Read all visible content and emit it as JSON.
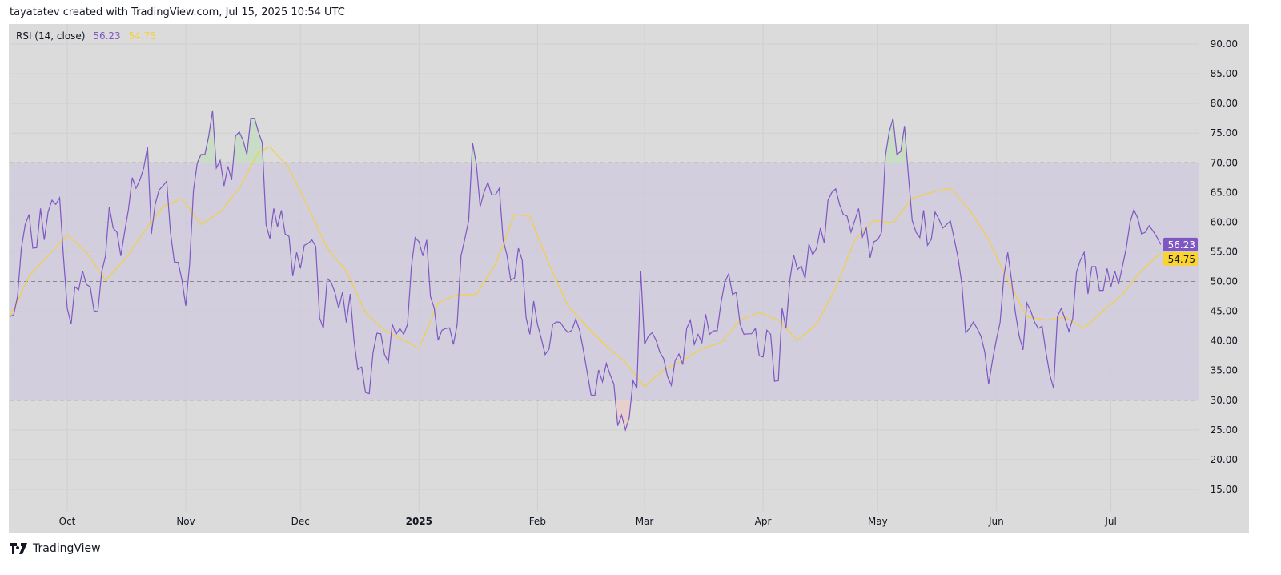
{
  "header": {
    "attribution": "tayatatev created with TradingView.com, Jul 15, 2025 10:54 UTC"
  },
  "legend": {
    "indicator": "RSI (14, close)",
    "rsi_value": "56.23",
    "signal_value": "54.75"
  },
  "footer": {
    "brand": "TradingView",
    "logo_icon": "tradingview-logo-icon"
  },
  "colors": {
    "rsi": "#7e57c2",
    "signal": "#f5d03c",
    "band": "#cfc9dd",
    "background": "#dbdbdb",
    "overbought_fill": "#c9dcc6",
    "oversold_fill": "#e6cfcc"
  },
  "chart_data": {
    "type": "line",
    "title": "RSI (14, close)",
    "xlabel": "",
    "ylabel": "",
    "x_range": [
      "2024-09-16",
      "2025-07-24"
    ],
    "ylim": [
      10,
      92.5
    ],
    "y_ticks": [
      "15.00",
      "20.00",
      "25.00",
      "30.00",
      "35.00",
      "40.00",
      "45.00",
      "50.00",
      "55.00",
      "60.00",
      "65.00",
      "70.00",
      "75.00",
      "80.00",
      "85.00",
      "90.00"
    ],
    "x_ticks": [
      {
        "label": "Oct",
        "date": "2024-10-01"
      },
      {
        "label": "Nov",
        "date": "2024-11-01"
      },
      {
        "label": "Dec",
        "date": "2024-12-01"
      },
      {
        "label": "2025",
        "date": "2025-01-01",
        "bold": true
      },
      {
        "label": "Feb",
        "date": "2025-02-01"
      },
      {
        "label": "Mar",
        "date": "2025-03-01"
      },
      {
        "label": "Apr",
        "date": "2025-04-01"
      },
      {
        "label": "May",
        "date": "2025-05-01"
      },
      {
        "label": "Jun",
        "date": "2025-06-01"
      },
      {
        "label": "Jul",
        "date": "2025-07-01"
      }
    ],
    "bands": {
      "upper": 70,
      "middle": 50,
      "lower": 30
    },
    "grid": true,
    "series": [
      {
        "name": "RSI",
        "last_label": "56.23",
        "months": [
          {
            "month": "2024-09",
            "first_day": 16,
            "values": [
              44.1,
              44.4,
              47.5,
              55.6,
              59.6,
              61.3,
              55.6,
              55.7,
              62.3,
              57,
              61.7,
              63.7,
              63,
              64.1,
              54.3
            ]
          },
          {
            "month": "2024-10",
            "first_day": 1,
            "values": [
              45.5,
              42.8,
              49.1,
              48.6,
              51.8,
              49.5,
              49.1,
              45.1,
              44.9,
              51.6,
              54.3,
              62.6,
              59,
              58.3,
              54.3,
              58.3,
              62.1,
              67.5,
              65.7,
              67.1,
              69.1,
              72.7,
              58,
              63,
              65.4,
              66.1,
              66.9,
              58.3,
              53.3,
              53.2,
              50.2
            ]
          },
          {
            "month": "2024-11",
            "first_day": 1,
            "values": [
              45.9,
              52.9,
              65.3,
              70,
              71.4,
              71.4,
              74.5,
              78.8,
              69.1,
              70.4,
              66.1,
              69.4,
              67.1,
              74.5,
              75.2,
              73.8,
              71.4,
              77.5,
              77.5,
              75.2,
              73.4,
              59.6,
              57.2,
              62.3,
              59.2,
              62,
              58,
              57.6,
              50.9,
              54.9
            ]
          },
          {
            "month": "2024-12",
            "first_day": 1,
            "values": [
              52.2,
              56.1,
              56.4,
              57,
              55.9,
              43.9,
              42.1,
              50.5,
              49.9,
              48.2,
              45.5,
              48.2,
              43.1,
              47.9,
              40.1,
              35.2,
              35.6,
              31.3,
              31.1,
              38.1,
              41.3,
              41.2,
              37.7,
              36.4,
              42.8,
              41.1,
              42.1,
              41.1,
              42.8,
              52.5,
              57.4
            ]
          },
          {
            "month": "2025-01",
            "first_day": 1,
            "values": [
              56.7,
              54.3,
              57,
              47.5,
              45.5,
              40.1,
              41.8,
              42.1,
              42.2,
              39.4,
              42.8,
              54.3,
              57.2,
              60.3,
              73.4,
              69.8,
              62.6,
              65,
              66.7,
              64.6,
              64.6,
              65.7,
              57,
              54.5,
              50.2,
              50.6,
              55.6,
              53.6,
              44,
              41.1,
              46.7
            ]
          },
          {
            "month": "2025-02",
            "first_day": 1,
            "values": [
              42.8,
              40.4,
              37.7,
              38.6,
              42.8,
              43.2,
              43.1,
              42.1,
              41.4,
              41.8,
              43.7,
              41.8,
              38.5,
              34.7,
              30.9,
              30.8,
              35.1,
              33.1,
              36.2,
              34.3,
              32.7,
              25.7,
              27.5,
              25,
              27,
              33.3,
              32,
              51.8
            ]
          },
          {
            "month": "2025-03",
            "first_day": 1,
            "values": [
              39.4,
              40.8,
              41.4,
              40.1,
              38.1,
              37,
              34,
              32.5,
              36.7,
              37.8,
              36,
              42.1,
              43.5,
              39.4,
              41.1,
              39.7,
              44.5,
              41.1,
              41.7,
              41.7,
              46.4,
              49.9,
              51.3,
              47.8,
              48.2,
              42.8,
              41.1,
              41.2,
              41.2,
              42.1,
              37.5
            ]
          },
          {
            "month": "2025-04",
            "first_day": 1,
            "values": [
              37.3,
              41.8,
              41.1,
              33.2,
              33.3,
              45.5,
              42.1,
              50.2,
              54.5,
              52,
              52.6,
              50.5,
              56.3,
              54.5,
              55.6,
              59,
              56.5,
              63.7,
              65,
              65.6,
              63,
              61.3,
              61,
              58.3,
              60.3,
              62.3,
              57.5,
              59,
              54,
              56.7
            ]
          },
          {
            "month": "2025-05",
            "first_day": 1,
            "values": [
              57,
              58.3,
              71.1,
              75.2,
              77.5,
              71.4,
              71.9,
              76.2,
              68,
              60.3,
              58.3,
              57.4,
              62,
              56.1,
              57.1,
              61.7,
              60.5,
              59,
              59.6,
              60.2,
              57.2,
              54,
              49.5,
              41.4,
              42.1,
              43.2,
              42.1,
              40.8,
              38.1,
              32.7,
              36.7
            ]
          },
          {
            "month": "2025-06",
            "first_day": 1,
            "values": [
              40.1,
              43.1,
              50.9,
              54.9,
              50.2,
              44.8,
              40.8,
              38.5,
              46.4,
              45.1,
              43.2,
              42.1,
              42.5,
              38.1,
              34.3,
              32,
              44.1,
              45.5,
              43.7,
              41.6,
              43.7,
              51.6,
              53.6,
              54.9,
              47.9,
              52.5,
              52.5,
              48.5,
              48.5,
              52.2
            ]
          },
          {
            "month": "2025-07",
            "first_day": 1,
            "values": [
              49.1,
              51.8,
              49.5,
              52.5,
              55.6,
              60,
              62.1,
              60.7,
              58,
              58.3,
              59.4,
              58.5,
              57.5,
              56.23
            ]
          }
        ]
      },
      {
        "name": "RSI-based MA",
        "last_label": "54.75",
        "points": [
          [
            "2024-09-16",
            44
          ],
          [
            "2024-09-21",
            50.9
          ],
          [
            "2024-09-26",
            54.3
          ],
          [
            "2024-10-01",
            57.9
          ],
          [
            "2024-10-06",
            54.9
          ],
          [
            "2024-10-11",
            50.2
          ],
          [
            "2024-10-16",
            53.6
          ],
          [
            "2024-10-21",
            58.3
          ],
          [
            "2024-10-26",
            62.6
          ],
          [
            "2024-10-31",
            64
          ],
          [
            "2024-11-05",
            59.6
          ],
          [
            "2024-11-10",
            61.7
          ],
          [
            "2024-11-15",
            65.7
          ],
          [
            "2024-11-20",
            71.8
          ],
          [
            "2024-11-23",
            72.7
          ],
          [
            "2024-11-28",
            69.1
          ],
          [
            "2024-12-03",
            62.6
          ],
          [
            "2024-12-08",
            55.6
          ],
          [
            "2024-12-13",
            51.8
          ],
          [
            "2024-12-18",
            44.8
          ],
          [
            "2024-12-23",
            41.8
          ],
          [
            "2024-12-28",
            40.1
          ],
          [
            "2025-01-01",
            38.7
          ],
          [
            "2025-01-06",
            46.4
          ],
          [
            "2025-01-11",
            47.8
          ],
          [
            "2025-01-16",
            47.8
          ],
          [
            "2025-01-21",
            52.9
          ],
          [
            "2025-01-26",
            61.3
          ],
          [
            "2025-01-30",
            61
          ],
          [
            "2025-02-04",
            52.9
          ],
          [
            "2025-02-09",
            45.9
          ],
          [
            "2025-02-14",
            42.4
          ],
          [
            "2025-02-19",
            39.1
          ],
          [
            "2025-02-24",
            36.4
          ],
          [
            "2025-03-01",
            32.3
          ],
          [
            "2025-03-06",
            35.1
          ],
          [
            "2025-03-11",
            36.7
          ],
          [
            "2025-03-16",
            38.7
          ],
          [
            "2025-03-21",
            39.7
          ],
          [
            "2025-03-26",
            43.5
          ],
          [
            "2025-03-31",
            44.8
          ],
          [
            "2025-04-05",
            43.5
          ],
          [
            "2025-04-10",
            40.1
          ],
          [
            "2025-04-15",
            42.8
          ],
          [
            "2025-04-20",
            48.9
          ],
          [
            "2025-04-25",
            57
          ],
          [
            "2025-04-30",
            60.3
          ],
          [
            "2025-05-05",
            59.9
          ],
          [
            "2025-05-10",
            64
          ],
          [
            "2025-05-15",
            65
          ],
          [
            "2025-05-20",
            65.7
          ],
          [
            "2025-05-25",
            62.1
          ],
          [
            "2025-05-30",
            57
          ],
          [
            "2025-06-04",
            50.2
          ],
          [
            "2025-06-09",
            44.1
          ],
          [
            "2025-06-14",
            43.5
          ],
          [
            "2025-06-19",
            44
          ],
          [
            "2025-06-24",
            42.1
          ],
          [
            "2025-06-29",
            45.1
          ],
          [
            "2025-07-04",
            47.8
          ],
          [
            "2025-07-09",
            51.8
          ],
          [
            "2025-07-14",
            54.75
          ]
        ]
      }
    ]
  }
}
